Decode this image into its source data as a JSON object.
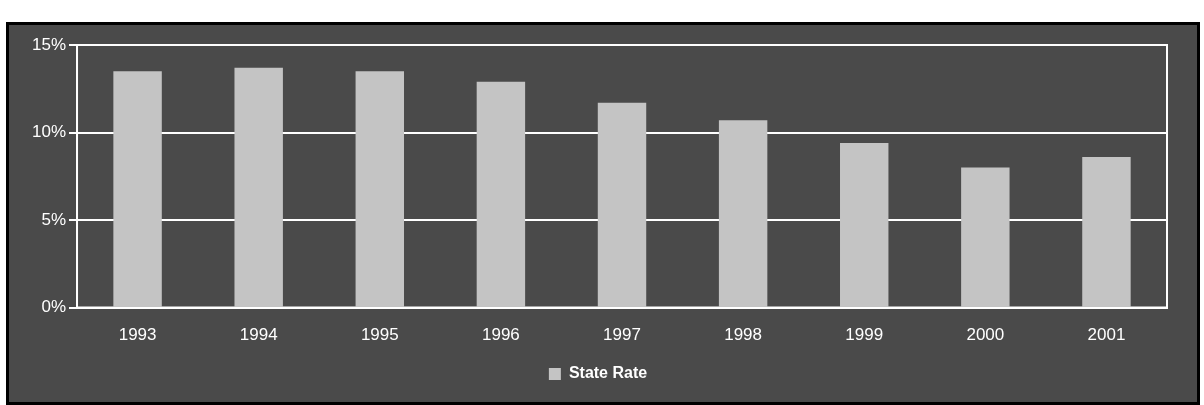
{
  "chart_data": {
    "type": "bar",
    "categories": [
      "1993",
      "1994",
      "1995",
      "1996",
      "1997",
      "1998",
      "1999",
      "2000",
      "2001"
    ],
    "series": [
      {
        "name": "State Rate",
        "color": "#c4c4c4",
        "values": [
          13.5,
          13.7,
          13.5,
          12.9,
          11.7,
          10.7,
          9.4,
          8.0,
          8.6
        ]
      }
    ],
    "ylim": [
      0,
      15
    ],
    "yticks": [
      {
        "value": 0,
        "label": "0%"
      },
      {
        "value": 5,
        "label": "5%"
      },
      {
        "value": 10,
        "label": "10%"
      },
      {
        "value": 15,
        "label": "15%"
      }
    ],
    "grid": "y",
    "legend": "bottom"
  }
}
